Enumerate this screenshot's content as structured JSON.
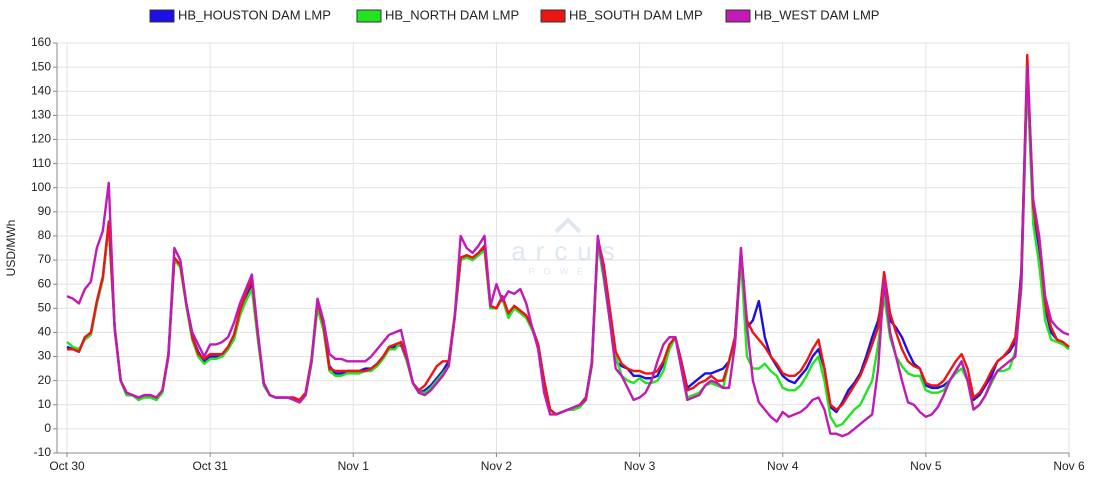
{
  "chart_data": {
    "type": "line",
    "y_label": "USD/MWh",
    "watermark": "arcus",
    "watermark_sub": "POWER",
    "xlim": [
      0,
      168
    ],
    "xticks": [
      {
        "value": 0,
        "label": "Oct 30"
      },
      {
        "value": 24,
        "label": "Oct 31"
      },
      {
        "value": 48,
        "label": "Nov 1"
      },
      {
        "value": 72,
        "label": "Nov 2"
      },
      {
        "value": 96,
        "label": "Nov 3"
      },
      {
        "value": 120,
        "label": "Nov 4"
      },
      {
        "value": 144,
        "label": "Nov 5"
      },
      {
        "value": 168,
        "label": "Nov 6"
      }
    ],
    "ylim": [
      -10,
      160
    ],
    "yticks": [
      -10,
      0,
      10,
      20,
      30,
      40,
      50,
      60,
      70,
      80,
      90,
      100,
      110,
      120,
      130,
      140,
      150,
      160
    ],
    "grid": true,
    "x": [
      0,
      1,
      2,
      3,
      4,
      5,
      6,
      7,
      8,
      9,
      10,
      11,
      12,
      13,
      14,
      15,
      16,
      17,
      18,
      19,
      20,
      21,
      22,
      23,
      24,
      25,
      26,
      27,
      28,
      29,
      30,
      31,
      32,
      33,
      34,
      35,
      36,
      37,
      38,
      39,
      40,
      41,
      42,
      43,
      44,
      45,
      46,
      47,
      48,
      49,
      50,
      51,
      52,
      53,
      54,
      55,
      56,
      57,
      58,
      59,
      60,
      61,
      62,
      63,
      64,
      65,
      66,
      67,
      68,
      69,
      70,
      71,
      72,
      73,
      74,
      75,
      76,
      77,
      78,
      79,
      80,
      81,
      82,
      83,
      84,
      85,
      86,
      87,
      88,
      89,
      90,
      91,
      92,
      93,
      94,
      95,
      96,
      97,
      98,
      99,
      100,
      101,
      102,
      103,
      104,
      105,
      106,
      107,
      108,
      109,
      110,
      111,
      112,
      113,
      114,
      115,
      116,
      117,
      118,
      119,
      120,
      121,
      122,
      123,
      124,
      125,
      126,
      127,
      128,
      129,
      130,
      131,
      132,
      133,
      134,
      135,
      136,
      137,
      138,
      139,
      140,
      141,
      142,
      143,
      144,
      145,
      146,
      147,
      148,
      149,
      150,
      151,
      152,
      153,
      154,
      155,
      156,
      157,
      158,
      159,
      160,
      161,
      162,
      163,
      164,
      165,
      166,
      167,
      168
    ],
    "series": [
      {
        "name": "HB_HOUSTON DAM LMP",
        "color": "#1a10e6",
        "values": [
          34,
          33,
          32,
          38,
          39,
          52,
          62,
          85,
          42,
          20,
          14,
          14,
          12,
          14,
          13,
          12,
          16,
          30,
          70,
          68,
          52,
          38,
          32,
          28,
          30,
          30,
          30,
          33,
          38,
          48,
          55,
          60,
          38,
          18,
          14,
          13,
          13,
          13,
          13,
          11,
          14,
          28,
          52,
          42,
          26,
          23,
          23,
          24,
          24,
          24,
          25,
          25,
          27,
          30,
          33,
          34,
          35,
          28,
          19,
          15,
          16,
          18,
          21,
          24,
          28,
          46,
          70,
          72,
          70,
          72,
          75,
          50,
          50,
          55,
          47,
          51,
          49,
          47,
          42,
          35,
          20,
          8,
          6,
          7,
          8,
          8,
          10,
          13,
          27,
          78,
          66,
          48,
          28,
          26,
          25,
          22,
          22,
          21,
          21,
          22,
          27,
          34,
          38,
          28,
          17,
          19,
          21,
          23,
          23,
          24,
          25,
          28,
          38,
          73,
          42,
          45,
          53,
          38,
          30,
          26,
          22,
          20,
          19,
          22,
          25,
          30,
          33,
          25,
          9,
          7,
          11,
          16,
          19,
          23,
          30,
          38,
          45,
          58,
          45,
          42,
          38,
          32,
          27,
          25,
          18,
          17,
          17,
          18,
          20,
          24,
          28,
          20,
          12,
          14,
          18,
          22,
          28,
          30,
          32,
          36,
          65,
          150,
          90,
          75,
          50,
          40,
          37,
          35,
          34
        ]
      },
      {
        "name": "HB_NORTH DAM LMP",
        "color": "#22e422",
        "values": [
          36,
          34,
          33,
          37,
          39,
          52,
          62,
          84,
          42,
          20,
          14,
          14,
          12,
          13,
          13,
          12,
          15,
          30,
          70,
          67,
          51,
          37,
          30,
          27,
          29,
          29,
          30,
          33,
          37,
          47,
          53,
          58,
          37,
          18,
          14,
          13,
          13,
          13,
          12,
          11,
          14,
          27,
          50,
          41,
          24,
          22,
          22,
          23,
          23,
          23,
          24,
          24,
          26,
          29,
          33,
          33,
          36,
          28,
          19,
          15,
          15,
          17,
          20,
          23,
          26,
          46,
          70,
          71,
          70,
          72,
          74,
          50,
          50,
          54,
          46,
          50,
          48,
          46,
          41,
          35,
          20,
          8,
          6,
          7,
          8,
          8,
          9,
          12,
          26,
          77,
          62,
          45,
          30,
          22,
          20,
          19,
          21,
          19,
          19,
          20,
          24,
          33,
          38,
          28,
          13,
          14,
          15,
          18,
          19,
          18,
          17,
          28,
          35,
          70,
          30,
          25,
          25,
          27,
          24,
          22,
          17,
          16,
          16,
          18,
          22,
          27,
          30,
          20,
          5,
          1,
          2,
          5,
          8,
          10,
          15,
          20,
          35,
          55,
          38,
          30,
          26,
          23,
          22,
          22,
          16,
          15,
          15,
          16,
          20,
          23,
          25,
          20,
          8,
          10,
          14,
          19,
          24,
          24,
          25,
          32,
          58,
          145,
          85,
          68,
          45,
          37,
          36,
          35,
          33
        ]
      },
      {
        "name": "HB_SOUTH DAM LMP",
        "color": "#ee1414",
        "values": [
          33,
          33,
          32,
          38,
          40,
          53,
          63,
          86,
          42,
          20,
          15,
          14,
          13,
          14,
          14,
          13,
          16,
          31,
          71,
          68,
          52,
          38,
          31,
          29,
          31,
          31,
          31,
          34,
          39,
          49,
          56,
          62,
          39,
          19,
          14,
          13,
          13,
          13,
          13,
          12,
          15,
          29,
          53,
          43,
          25,
          24,
          24,
          24,
          24,
          24,
          24,
          25,
          27,
          30,
          34,
          35,
          36,
          29,
          19,
          16,
          18,
          22,
          26,
          28,
          28,
          47,
          71,
          72,
          71,
          73,
          76,
          51,
          50,
          55,
          48,
          51,
          49,
          47,
          42,
          35,
          20,
          8,
          6,
          7,
          8,
          9,
          10,
          13,
          27,
          79,
          68,
          50,
          32,
          27,
          25,
          24,
          24,
          23,
          23,
          24,
          28,
          35,
          38,
          28,
          16,
          17,
          19,
          20,
          22,
          20,
          20,
          28,
          38,
          74,
          45,
          40,
          37,
          34,
          30,
          27,
          23,
          22,
          22,
          24,
          28,
          33,
          37,
          25,
          10,
          8,
          10,
          14,
          18,
          22,
          28,
          35,
          42,
          65,
          48,
          40,
          33,
          28,
          26,
          25,
          19,
          18,
          18,
          20,
          24,
          28,
          31,
          25,
          13,
          15,
          19,
          24,
          28,
          30,
          33,
          38,
          62,
          155,
          92,
          78,
          52,
          42,
          37,
          36,
          34
        ]
      },
      {
        "name": "HB_WEST DAM LMP",
        "color": "#c21ab4",
        "values": [
          55,
          54,
          52,
          58,
          61,
          75,
          82,
          102,
          41,
          20,
          15,
          14,
          13,
          14,
          14,
          13,
          16,
          30,
          75,
          70,
          52,
          40,
          35,
          30,
          35,
          35,
          36,
          38,
          44,
          52,
          58,
          64,
          40,
          19,
          14,
          13,
          13,
          13,
          12,
          11,
          14,
          28,
          54,
          45,
          31,
          29,
          29,
          28,
          28,
          28,
          28,
          30,
          33,
          36,
          39,
          40,
          41,
          30,
          19,
          15,
          14,
          16,
          19,
          22,
          26,
          46,
          80,
          75,
          73,
          76,
          80,
          51,
          60,
          53,
          57,
          56,
          58,
          52,
          42,
          33,
          15,
          6,
          6,
          7,
          8,
          9,
          10,
          12,
          28,
          80,
          64,
          45,
          25,
          22,
          17,
          12,
          13,
          15,
          20,
          28,
          35,
          38,
          38,
          25,
          12,
          13,
          14,
          18,
          20,
          19,
          17,
          17,
          35,
          75,
          43,
          20,
          11,
          8,
          5,
          3,
          7,
          5,
          6,
          7,
          9,
          12,
          13,
          8,
          -2,
          -2,
          -3,
          -2,
          0,
          2,
          4,
          6,
          25,
          62,
          40,
          30,
          20,
          11,
          10,
          7,
          5,
          6,
          9,
          14,
          20,
          24,
          28,
          20,
          8,
          10,
          14,
          20,
          24,
          26,
          28,
          30,
          60,
          150,
          95,
          80,
          55,
          45,
          42,
          40,
          39
        ]
      }
    ]
  }
}
